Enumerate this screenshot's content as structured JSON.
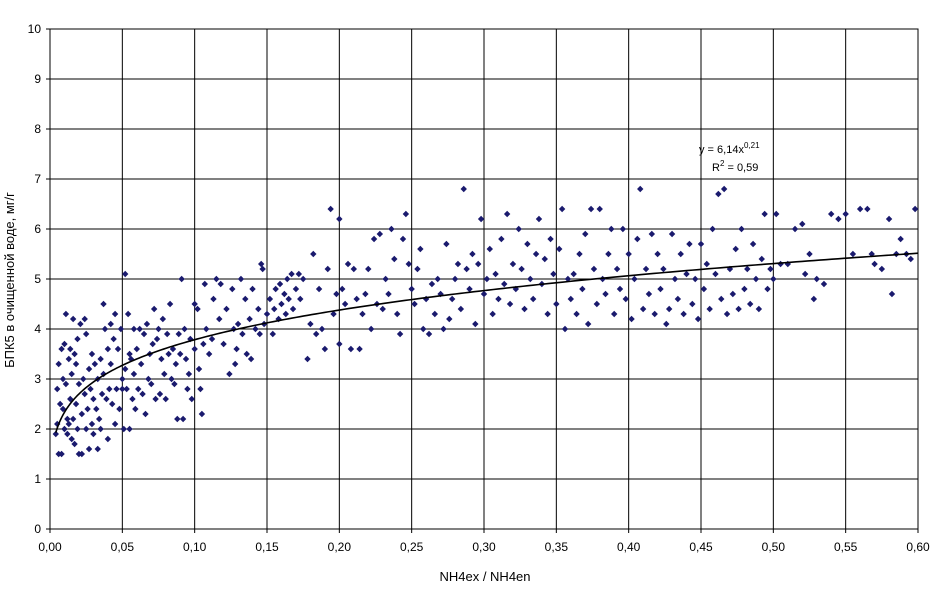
{
  "chart_data": {
    "type": "scatter",
    "title": "",
    "xlabel": "NH4ex / NH4en",
    "ylabel": "БПК5 в очищенной воде, мг/г",
    "xlim": [
      0,
      0.6
    ],
    "ylim": [
      0,
      10
    ],
    "x_ticks": [
      "0,00",
      "0,05",
      "0,10",
      "0,15",
      "0,20",
      "0,25",
      "0,30",
      "0,35",
      "0,40",
      "0,45",
      "0,50",
      "0,55",
      "0,60"
    ],
    "y_ticks": [
      "0",
      "1",
      "2",
      "3",
      "4",
      "5",
      "6",
      "7",
      "8",
      "9",
      "10"
    ],
    "grid": true,
    "legend": "none",
    "marker_color": "#1a1a6e",
    "trendline": {
      "type": "power",
      "a": 6.14,
      "b": 0.21,
      "equation_label": "y = 6,14x",
      "equation_exponent": "0,21",
      "r2_label": "R",
      "r2_exponent": "2",
      "r2_value": " = 0,59"
    },
    "points": [
      [
        0.004,
        1.9
      ],
      [
        0.005,
        2.1
      ],
      [
        0.005,
        2.8
      ],
      [
        0.006,
        3.3
      ],
      [
        0.006,
        1.5
      ],
      [
        0.007,
        2.5
      ],
      [
        0.008,
        1.5
      ],
      [
        0.008,
        3.6
      ],
      [
        0.009,
        3.0
      ],
      [
        0.009,
        2.4
      ],
      [
        0.01,
        2.0
      ],
      [
        0.01,
        3.7
      ],
      [
        0.011,
        4.3
      ],
      [
        0.011,
        2.9
      ],
      [
        0.012,
        2.2
      ],
      [
        0.012,
        1.9
      ],
      [
        0.013,
        3.4
      ],
      [
        0.013,
        2.1
      ],
      [
        0.014,
        3.6
      ],
      [
        0.014,
        2.6
      ],
      [
        0.015,
        1.8
      ],
      [
        0.015,
        3.1
      ],
      [
        0.016,
        2.2
      ],
      [
        0.016,
        4.2
      ],
      [
        0.017,
        1.7
      ],
      [
        0.017,
        3.5
      ],
      [
        0.018,
        2.5
      ],
      [
        0.018,
        3.3
      ],
      [
        0.019,
        2.0
      ],
      [
        0.019,
        3.8
      ],
      [
        0.02,
        1.5
      ],
      [
        0.02,
        2.9
      ],
      [
        0.021,
        4.1
      ],
      [
        0.022,
        2.3
      ],
      [
        0.022,
        1.5
      ],
      [
        0.023,
        3.0
      ],
      [
        0.024,
        2.7
      ],
      [
        0.024,
        4.2
      ],
      [
        0.025,
        2.0
      ],
      [
        0.025,
        3.9
      ],
      [
        0.026,
        2.4
      ],
      [
        0.027,
        1.6
      ],
      [
        0.027,
        3.2
      ],
      [
        0.028,
        2.8
      ],
      [
        0.029,
        2.1
      ],
      [
        0.029,
        3.5
      ],
      [
        0.03,
        1.9
      ],
      [
        0.03,
        2.6
      ],
      [
        0.031,
        3.3
      ],
      [
        0.032,
        2.4
      ],
      [
        0.033,
        1.6
      ],
      [
        0.033,
        3.0
      ],
      [
        0.034,
        2.2
      ],
      [
        0.035,
        3.4
      ],
      [
        0.035,
        2.0
      ],
      [
        0.036,
        2.7
      ],
      [
        0.037,
        4.5
      ],
      [
        0.037,
        3.1
      ],
      [
        0.038,
        4.0
      ],
      [
        0.039,
        2.6
      ],
      [
        0.04,
        3.6
      ],
      [
        0.04,
        1.8
      ],
      [
        0.041,
        2.8
      ],
      [
        0.042,
        4.1
      ],
      [
        0.042,
        3.3
      ],
      [
        0.043,
        2.5
      ],
      [
        0.044,
        3.8
      ],
      [
        0.045,
        2.1
      ],
      [
        0.045,
        4.3
      ],
      [
        0.046,
        2.8
      ],
      [
        0.047,
        3.6
      ],
      [
        0.048,
        2.4
      ],
      [
        0.049,
        4.0
      ],
      [
        0.05,
        3.0
      ],
      [
        0.05,
        2.8
      ],
      [
        0.051,
        2.0
      ],
      [
        0.052,
        5.1
      ],
      [
        0.052,
        3.2
      ],
      [
        0.053,
        2.8
      ],
      [
        0.054,
        4.3
      ],
      [
        0.055,
        3.5
      ],
      [
        0.055,
        2.0
      ],
      [
        0.056,
        3.4
      ],
      [
        0.057,
        2.6
      ],
      [
        0.058,
        4.0
      ],
      [
        0.058,
        3.1
      ],
      [
        0.059,
        2.4
      ],
      [
        0.06,
        3.6
      ],
      [
        0.061,
        2.8
      ],
      [
        0.062,
        4.0
      ],
      [
        0.063,
        3.3
      ],
      [
        0.064,
        2.7
      ],
      [
        0.065,
        3.9
      ],
      [
        0.066,
        2.3
      ],
      [
        0.067,
        4.1
      ],
      [
        0.068,
        3.0
      ],
      [
        0.069,
        3.5
      ],
      [
        0.07,
        2.9
      ],
      [
        0.071,
        3.7
      ],
      [
        0.072,
        4.4
      ],
      [
        0.073,
        2.6
      ],
      [
        0.074,
        3.8
      ],
      [
        0.075,
        4.0
      ],
      [
        0.076,
        2.7
      ],
      [
        0.077,
        3.4
      ],
      [
        0.078,
        4.2
      ],
      [
        0.079,
        3.1
      ],
      [
        0.08,
        2.6
      ],
      [
        0.081,
        3.9
      ],
      [
        0.082,
        3.5
      ],
      [
        0.083,
        4.5
      ],
      [
        0.084,
        3.0
      ],
      [
        0.085,
        3.6
      ],
      [
        0.086,
        2.9
      ],
      [
        0.087,
        3.3
      ],
      [
        0.088,
        2.2
      ],
      [
        0.089,
        3.9
      ],
      [
        0.09,
        3.5
      ],
      [
        0.091,
        5.0
      ],
      [
        0.092,
        2.2
      ],
      [
        0.093,
        4.0
      ],
      [
        0.094,
        3.4
      ],
      [
        0.095,
        2.8
      ],
      [
        0.096,
        3.1
      ],
      [
        0.097,
        3.8
      ],
      [
        0.098,
        2.6
      ],
      [
        0.1,
        4.5
      ],
      [
        0.1,
        3.6
      ],
      [
        0.102,
        4.4
      ],
      [
        0.103,
        3.2
      ],
      [
        0.104,
        2.8
      ],
      [
        0.105,
        2.3
      ],
      [
        0.106,
        3.7
      ],
      [
        0.107,
        4.9
      ],
      [
        0.108,
        4.0
      ],
      [
        0.11,
        3.5
      ],
      [
        0.112,
        3.8
      ],
      [
        0.113,
        4.6
      ],
      [
        0.115,
        5.0
      ],
      [
        0.117,
        4.2
      ],
      [
        0.118,
        4.9
      ],
      [
        0.12,
        3.7
      ],
      [
        0.122,
        4.4
      ],
      [
        0.124,
        3.1
      ],
      [
        0.126,
        4.8
      ],
      [
        0.127,
        4.0
      ],
      [
        0.128,
        3.3
      ],
      [
        0.129,
        3.6
      ],
      [
        0.13,
        4.1
      ],
      [
        0.132,
        5.0
      ],
      [
        0.133,
        3.9
      ],
      [
        0.135,
        4.6
      ],
      [
        0.136,
        3.5
      ],
      [
        0.138,
        4.2
      ],
      [
        0.139,
        3.4
      ],
      [
        0.14,
        4.8
      ],
      [
        0.142,
        4.0
      ],
      [
        0.144,
        4.4
      ],
      [
        0.145,
        3.9
      ],
      [
        0.146,
        5.3
      ],
      [
        0.147,
        5.2
      ],
      [
        0.148,
        4.1
      ],
      [
        0.15,
        4.3
      ],
      [
        0.152,
        4.6
      ],
      [
        0.154,
        3.9
      ],
      [
        0.155,
        4.4
      ],
      [
        0.156,
        4.8
      ],
      [
        0.158,
        4.2
      ],
      [
        0.159,
        4.9
      ],
      [
        0.16,
        4.5
      ],
      [
        0.162,
        4.7
      ],
      [
        0.163,
        4.3
      ],
      [
        0.164,
        5.0
      ],
      [
        0.165,
        4.6
      ],
      [
        0.167,
        5.1
      ],
      [
        0.168,
        4.4
      ],
      [
        0.17,
        4.8
      ],
      [
        0.172,
        5.1
      ],
      [
        0.173,
        4.6
      ],
      [
        0.175,
        5.0
      ],
      [
        0.178,
        3.4
      ],
      [
        0.18,
        4.1
      ],
      [
        0.182,
        5.5
      ],
      [
        0.184,
        3.9
      ],
      [
        0.186,
        4.8
      ],
      [
        0.188,
        4.0
      ],
      [
        0.19,
        3.6
      ],
      [
        0.192,
        5.2
      ],
      [
        0.194,
        6.4
      ],
      [
        0.196,
        4.3
      ],
      [
        0.198,
        4.7
      ],
      [
        0.2,
        6.2
      ],
      [
        0.2,
        3.7
      ],
      [
        0.202,
        4.8
      ],
      [
        0.204,
        4.5
      ],
      [
        0.206,
        5.3
      ],
      [
        0.208,
        3.6
      ],
      [
        0.21,
        5.2
      ],
      [
        0.212,
        4.6
      ],
      [
        0.214,
        3.6
      ],
      [
        0.216,
        4.3
      ],
      [
        0.218,
        4.7
      ],
      [
        0.22,
        5.2
      ],
      [
        0.222,
        4.0
      ],
      [
        0.224,
        5.8
      ],
      [
        0.226,
        4.5
      ],
      [
        0.228,
        5.9
      ],
      [
        0.23,
        4.4
      ],
      [
        0.232,
        5.0
      ],
      [
        0.234,
        4.7
      ],
      [
        0.236,
        6.0
      ],
      [
        0.238,
        5.4
      ],
      [
        0.24,
        4.3
      ],
      [
        0.242,
        3.9
      ],
      [
        0.244,
        5.8
      ],
      [
        0.246,
        6.3
      ],
      [
        0.248,
        5.3
      ],
      [
        0.25,
        4.8
      ],
      [
        0.252,
        4.5
      ],
      [
        0.254,
        5.2
      ],
      [
        0.256,
        5.6
      ],
      [
        0.258,
        4.0
      ],
      [
        0.26,
        4.6
      ],
      [
        0.262,
        3.9
      ],
      [
        0.264,
        4.9
      ],
      [
        0.266,
        4.3
      ],
      [
        0.268,
        5.0
      ],
      [
        0.27,
        4.7
      ],
      [
        0.272,
        4.0
      ],
      [
        0.274,
        5.7
      ],
      [
        0.276,
        4.2
      ],
      [
        0.278,
        4.6
      ],
      [
        0.28,
        5.0
      ],
      [
        0.282,
        5.3
      ],
      [
        0.284,
        4.4
      ],
      [
        0.286,
        6.8
      ],
      [
        0.288,
        5.2
      ],
      [
        0.29,
        4.8
      ],
      [
        0.292,
        5.5
      ],
      [
        0.294,
        4.1
      ],
      [
        0.296,
        5.3
      ],
      [
        0.298,
        6.2
      ],
      [
        0.3,
        4.7
      ],
      [
        0.302,
        5.0
      ],
      [
        0.304,
        5.6
      ],
      [
        0.306,
        4.3
      ],
      [
        0.308,
        5.1
      ],
      [
        0.31,
        4.6
      ],
      [
        0.312,
        5.8
      ],
      [
        0.314,
        4.9
      ],
      [
        0.316,
        6.3
      ],
      [
        0.318,
        4.5
      ],
      [
        0.32,
        5.3
      ],
      [
        0.322,
        4.8
      ],
      [
        0.324,
        6.0
      ],
      [
        0.326,
        5.2
      ],
      [
        0.328,
        4.4
      ],
      [
        0.33,
        5.7
      ],
      [
        0.332,
        5.0
      ],
      [
        0.334,
        4.6
      ],
      [
        0.336,
        5.5
      ],
      [
        0.338,
        6.2
      ],
      [
        0.34,
        4.9
      ],
      [
        0.342,
        5.4
      ],
      [
        0.344,
        4.3
      ],
      [
        0.346,
        5.8
      ],
      [
        0.348,
        5.1
      ],
      [
        0.35,
        4.5
      ],
      [
        0.352,
        5.6
      ],
      [
        0.354,
        6.4
      ],
      [
        0.356,
        4.0
      ],
      [
        0.358,
        5.0
      ],
      [
        0.36,
        4.6
      ],
      [
        0.362,
        5.1
      ],
      [
        0.364,
        4.3
      ],
      [
        0.366,
        5.5
      ],
      [
        0.368,
        4.8
      ],
      [
        0.37,
        5.9
      ],
      [
        0.372,
        4.1
      ],
      [
        0.374,
        6.4
      ],
      [
        0.376,
        5.2
      ],
      [
        0.378,
        4.5
      ],
      [
        0.38,
        6.4
      ],
      [
        0.382,
        5.0
      ],
      [
        0.384,
        4.7
      ],
      [
        0.386,
        5.5
      ],
      [
        0.388,
        6.0
      ],
      [
        0.39,
        4.3
      ],
      [
        0.392,
        5.2
      ],
      [
        0.394,
        4.8
      ],
      [
        0.396,
        6.0
      ],
      [
        0.398,
        4.6
      ],
      [
        0.4,
        5.5
      ],
      [
        0.402,
        4.2
      ],
      [
        0.404,
        5.0
      ],
      [
        0.406,
        5.8
      ],
      [
        0.408,
        6.8
      ],
      [
        0.41,
        4.4
      ],
      [
        0.412,
        5.2
      ],
      [
        0.414,
        4.7
      ],
      [
        0.416,
        5.9
      ],
      [
        0.418,
        4.3
      ],
      [
        0.42,
        5.5
      ],
      [
        0.422,
        4.8
      ],
      [
        0.424,
        5.2
      ],
      [
        0.426,
        4.1
      ],
      [
        0.428,
        4.4
      ],
      [
        0.43,
        5.9
      ],
      [
        0.432,
        5.0
      ],
      [
        0.434,
        4.6
      ],
      [
        0.436,
        5.5
      ],
      [
        0.438,
        4.3
      ],
      [
        0.44,
        5.1
      ],
      [
        0.442,
        5.7
      ],
      [
        0.444,
        4.5
      ],
      [
        0.446,
        5.0
      ],
      [
        0.448,
        4.2
      ],
      [
        0.45,
        5.7
      ],
      [
        0.452,
        4.8
      ],
      [
        0.454,
        5.3
      ],
      [
        0.456,
        4.4
      ],
      [
        0.458,
        6.0
      ],
      [
        0.46,
        5.1
      ],
      [
        0.462,
        6.7
      ],
      [
        0.464,
        4.6
      ],
      [
        0.466,
        6.8
      ],
      [
        0.468,
        4.3
      ],
      [
        0.47,
        5.2
      ],
      [
        0.472,
        4.7
      ],
      [
        0.474,
        5.6
      ],
      [
        0.476,
        4.4
      ],
      [
        0.478,
        6.0
      ],
      [
        0.48,
        4.8
      ],
      [
        0.482,
        5.2
      ],
      [
        0.484,
        4.5
      ],
      [
        0.486,
        5.7
      ],
      [
        0.488,
        5.0
      ],
      [
        0.49,
        4.4
      ],
      [
        0.492,
        5.4
      ],
      [
        0.494,
        6.3
      ],
      [
        0.496,
        4.8
      ],
      [
        0.498,
        5.2
      ],
      [
        0.5,
        5.0
      ],
      [
        0.502,
        6.3
      ],
      [
        0.505,
        5.3
      ],
      [
        0.51,
        5.3
      ],
      [
        0.515,
        6.0
      ],
      [
        0.52,
        6.1
      ],
      [
        0.522,
        5.1
      ],
      [
        0.525,
        5.5
      ],
      [
        0.528,
        4.6
      ],
      [
        0.53,
        5.0
      ],
      [
        0.535,
        4.9
      ],
      [
        0.54,
        6.3
      ],
      [
        0.545,
        6.2
      ],
      [
        0.55,
        6.3
      ],
      [
        0.555,
        5.5
      ],
      [
        0.56,
        6.4
      ],
      [
        0.565,
        6.4
      ],
      [
        0.568,
        5.5
      ],
      [
        0.57,
        5.3
      ],
      [
        0.575,
        5.2
      ],
      [
        0.58,
        6.2
      ],
      [
        0.582,
        4.7
      ],
      [
        0.585,
        5.5
      ],
      [
        0.588,
        5.8
      ],
      [
        0.592,
        5.5
      ],
      [
        0.595,
        5.4
      ],
      [
        0.598,
        6.4
      ]
    ]
  }
}
